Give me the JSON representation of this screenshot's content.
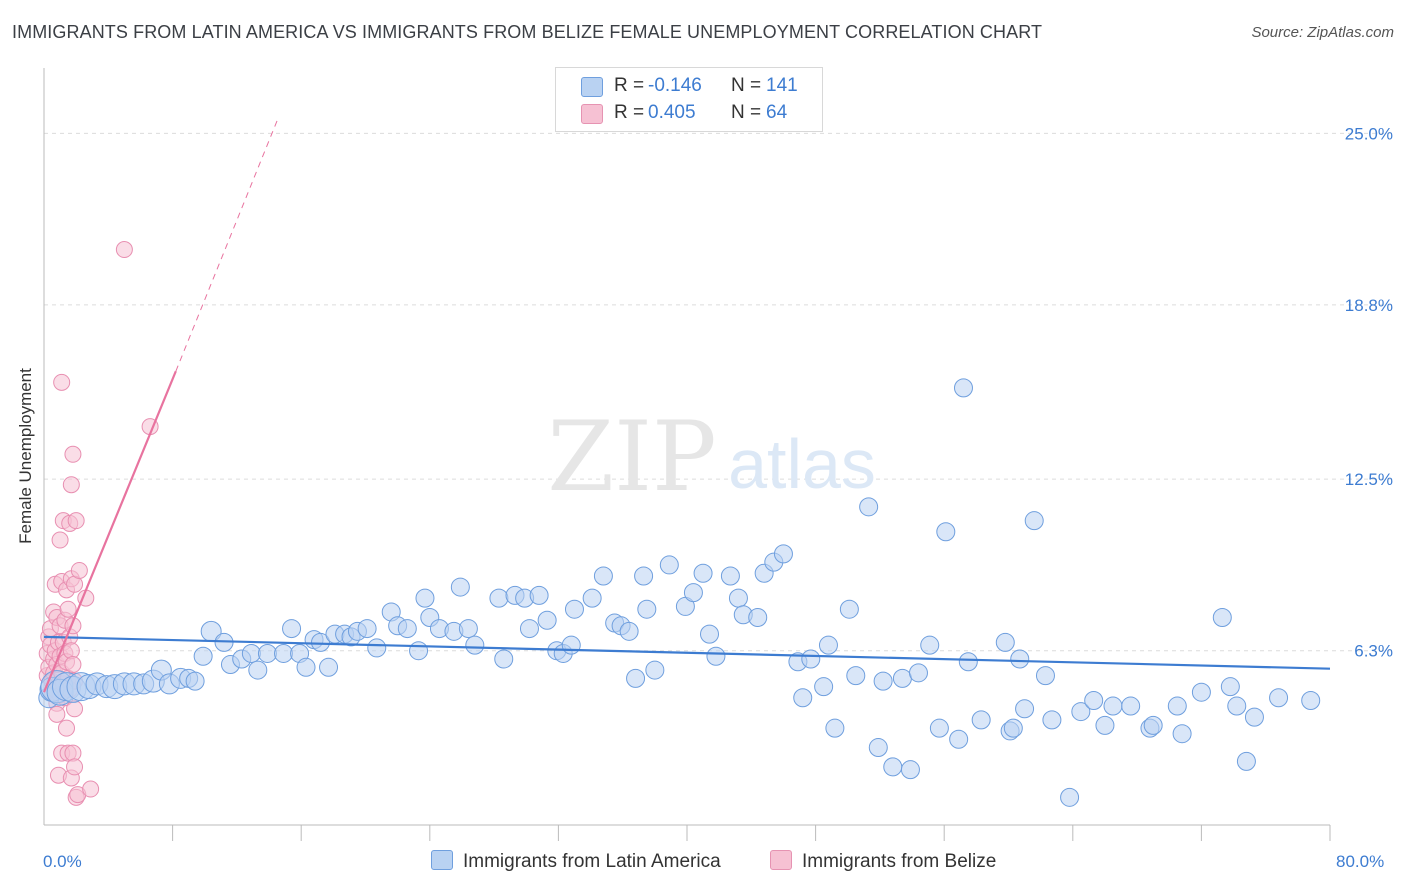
{
  "title": "IMMIGRANTS FROM LATIN AMERICA VS IMMIGRANTS FROM BELIZE FEMALE UNEMPLOYMENT CORRELATION CHART",
  "source": "Source: ZipAtlas.com",
  "watermark": {
    "zip": "ZIP",
    "atlas": "atlas"
  },
  "legend": {
    "rows": [
      {
        "r_label": "R =",
        "r_value": "-0.146",
        "n_label": "N =",
        "n_value": "141"
      },
      {
        "r_label": "R =",
        "r_value": "0.405",
        "n_label": "N =",
        "n_value": "64"
      }
    ]
  },
  "x_axis": {
    "min_label": "0.0%",
    "max_label": "80.0%"
  },
  "colors": {
    "blue": "#3d7cd1",
    "blue_fill": "#b9d2f2",
    "pink": "#e8739f",
    "pink_fill": "#f6c1d3",
    "grid": "#dcdcdc"
  },
  "chart_data": {
    "type": "scatter",
    "title": "IMMIGRANTS FROM LATIN AMERICA VS IMMIGRANTS FROM BELIZE FEMALE UNEMPLOYMENT CORRELATION CHART",
    "xlabel": "",
    "ylabel": "Female Unemployment",
    "xlim": [
      0,
      80
    ],
    "ylim": [
      0,
      27
    ],
    "y_ticks": [
      6.3,
      12.5,
      18.8,
      25.0
    ],
    "y_tick_labels": [
      "6.3%",
      "12.5%",
      "18.8%",
      "25.0%"
    ],
    "x_tick_values": [
      8,
      16,
      24,
      32,
      40,
      48,
      56,
      64,
      72,
      80
    ],
    "series": [
      {
        "name": "Immigrants from Latin America",
        "color": "blue",
        "r": -0.146,
        "n": 141,
        "trend": {
          "x0": 0,
          "y0": 6.8,
          "x1": 80,
          "y1": 5.65
        },
        "points": [
          {
            "x": 0.3,
            "y": 4.6,
            "s": 10
          },
          {
            "x": 0.5,
            "y": 4.9,
            "s": 12
          },
          {
            "x": 0.8,
            "y": 5.0,
            "s": 16
          },
          {
            "x": 1.0,
            "y": 4.8,
            "s": 13
          },
          {
            "x": 1.4,
            "y": 5.0,
            "s": 14
          },
          {
            "x": 1.8,
            "y": 4.9,
            "s": 13
          },
          {
            "x": 2.3,
            "y": 5.0,
            "s": 14
          },
          {
            "x": 2.8,
            "y": 5.0,
            "s": 12
          },
          {
            "x": 3.3,
            "y": 5.1,
            "s": 11
          },
          {
            "x": 3.9,
            "y": 5.0,
            "s": 11
          },
          {
            "x": 4.4,
            "y": 5.0,
            "s": 12
          },
          {
            "x": 5.0,
            "y": 5.1,
            "s": 11
          },
          {
            "x": 5.6,
            "y": 5.1,
            "s": 11
          },
          {
            "x": 6.2,
            "y": 5.1,
            "s": 10
          },
          {
            "x": 6.8,
            "y": 5.2,
            "s": 11
          },
          {
            "x": 7.3,
            "y": 5.6,
            "s": 10
          },
          {
            "x": 7.8,
            "y": 5.1,
            "s": 10
          },
          {
            "x": 8.5,
            "y": 5.3,
            "s": 10
          },
          {
            "x": 9.0,
            "y": 5.3,
            "s": 9
          },
          {
            "x": 9.4,
            "y": 5.2,
            "s": 9
          },
          {
            "x": 9.9,
            "y": 6.1,
            "s": 9
          },
          {
            "x": 10.4,
            "y": 7.0,
            "s": 10
          },
          {
            "x": 11.2,
            "y": 6.6,
            "s": 9
          },
          {
            "x": 11.6,
            "y": 5.8,
            "s": 9
          },
          {
            "x": 12.3,
            "y": 6.0,
            "s": 9
          },
          {
            "x": 12.9,
            "y": 6.2,
            "s": 9
          },
          {
            "x": 13.3,
            "y": 5.6,
            "s": 9
          },
          {
            "x": 13.9,
            "y": 6.2,
            "s": 9
          },
          {
            "x": 14.9,
            "y": 6.2,
            "s": 9
          },
          {
            "x": 15.4,
            "y": 7.1,
            "s": 9
          },
          {
            "x": 15.9,
            "y": 6.2,
            "s": 9
          },
          {
            "x": 16.3,
            "y": 5.7,
            "s": 9
          },
          {
            "x": 16.8,
            "y": 6.7,
            "s": 9
          },
          {
            "x": 17.2,
            "y": 6.6,
            "s": 9
          },
          {
            "x": 17.7,
            "y": 5.7,
            "s": 9
          },
          {
            "x": 18.1,
            "y": 6.9,
            "s": 9
          },
          {
            "x": 18.7,
            "y": 6.9,
            "s": 9
          },
          {
            "x": 19.1,
            "y": 6.8,
            "s": 9
          },
          {
            "x": 19.5,
            "y": 7.0,
            "s": 9
          },
          {
            "x": 20.1,
            "y": 7.1,
            "s": 9
          },
          {
            "x": 20.7,
            "y": 6.4,
            "s": 9
          },
          {
            "x": 21.6,
            "y": 7.7,
            "s": 9
          },
          {
            "x": 22.0,
            "y": 7.2,
            "s": 9
          },
          {
            "x": 22.6,
            "y": 7.1,
            "s": 9
          },
          {
            "x": 23.3,
            "y": 6.3,
            "s": 9
          },
          {
            "x": 23.7,
            "y": 8.2,
            "s": 9
          },
          {
            "x": 24.0,
            "y": 7.5,
            "s": 9
          },
          {
            "x": 24.6,
            "y": 7.1,
            "s": 9
          },
          {
            "x": 25.5,
            "y": 7.0,
            "s": 9
          },
          {
            "x": 25.9,
            "y": 8.6,
            "s": 9
          },
          {
            "x": 26.4,
            "y": 7.1,
            "s": 9
          },
          {
            "x": 26.8,
            "y": 6.5,
            "s": 9
          },
          {
            "x": 28.3,
            "y": 8.2,
            "s": 9
          },
          {
            "x": 28.6,
            "y": 6.0,
            "s": 9
          },
          {
            "x": 29.3,
            "y": 8.3,
            "s": 9
          },
          {
            "x": 29.9,
            "y": 8.2,
            "s": 9
          },
          {
            "x": 30.2,
            "y": 7.1,
            "s": 9
          },
          {
            "x": 30.8,
            "y": 8.3,
            "s": 9
          },
          {
            "x": 31.3,
            "y": 7.4,
            "s": 9
          },
          {
            "x": 31.9,
            "y": 6.3,
            "s": 9
          },
          {
            "x": 32.3,
            "y": 6.2,
            "s": 9
          },
          {
            "x": 32.8,
            "y": 6.5,
            "s": 9
          },
          {
            "x": 33.0,
            "y": 7.8,
            "s": 9
          },
          {
            "x": 34.1,
            "y": 8.2,
            "s": 9
          },
          {
            "x": 34.8,
            "y": 9.0,
            "s": 9
          },
          {
            "x": 35.5,
            "y": 7.3,
            "s": 9
          },
          {
            "x": 35.9,
            "y": 7.2,
            "s": 9
          },
          {
            "x": 36.4,
            "y": 7.0,
            "s": 9
          },
          {
            "x": 36.8,
            "y": 5.3,
            "s": 9
          },
          {
            "x": 37.3,
            "y": 9.0,
            "s": 9
          },
          {
            "x": 37.5,
            "y": 7.8,
            "s": 9
          },
          {
            "x": 38.0,
            "y": 5.6,
            "s": 9
          },
          {
            "x": 38.9,
            "y": 9.4,
            "s": 9
          },
          {
            "x": 39.9,
            "y": 7.9,
            "s": 9
          },
          {
            "x": 40.4,
            "y": 8.4,
            "s": 9
          },
          {
            "x": 41.0,
            "y": 9.1,
            "s": 9
          },
          {
            "x": 41.4,
            "y": 6.9,
            "s": 9
          },
          {
            "x": 41.8,
            "y": 6.1,
            "s": 9
          },
          {
            "x": 42.7,
            "y": 9.0,
            "s": 9
          },
          {
            "x": 43.2,
            "y": 8.2,
            "s": 9
          },
          {
            "x": 43.5,
            "y": 7.6,
            "s": 9
          },
          {
            "x": 44.4,
            "y": 7.5,
            "s": 9
          },
          {
            "x": 44.8,
            "y": 9.1,
            "s": 9
          },
          {
            "x": 45.4,
            "y": 9.5,
            "s": 9
          },
          {
            "x": 46.0,
            "y": 9.8,
            "s": 9
          },
          {
            "x": 46.9,
            "y": 5.9,
            "s": 9
          },
          {
            "x": 47.2,
            "y": 4.6,
            "s": 9
          },
          {
            "x": 47.7,
            "y": 6.0,
            "s": 9
          },
          {
            "x": 48.5,
            "y": 5.0,
            "s": 9
          },
          {
            "x": 48.8,
            "y": 6.5,
            "s": 9
          },
          {
            "x": 49.2,
            "y": 3.5,
            "s": 9
          },
          {
            "x": 50.1,
            "y": 7.8,
            "s": 9
          },
          {
            "x": 50.5,
            "y": 5.4,
            "s": 9
          },
          {
            "x": 51.3,
            "y": 11.5,
            "s": 9
          },
          {
            "x": 51.9,
            "y": 2.8,
            "s": 9
          },
          {
            "x": 52.2,
            "y": 5.2,
            "s": 9
          },
          {
            "x": 52.8,
            "y": 2.1,
            "s": 9
          },
          {
            "x": 53.4,
            "y": 5.3,
            "s": 9
          },
          {
            "x": 53.9,
            "y": 2.0,
            "s": 9
          },
          {
            "x": 54.4,
            "y": 5.5,
            "s": 9
          },
          {
            "x": 55.1,
            "y": 6.5,
            "s": 9
          },
          {
            "x": 55.7,
            "y": 3.5,
            "s": 9
          },
          {
            "x": 56.1,
            "y": 10.6,
            "s": 9
          },
          {
            "x": 56.9,
            "y": 3.1,
            "s": 9
          },
          {
            "x": 57.2,
            "y": 15.8,
            "s": 9
          },
          {
            "x": 57.5,
            "y": 5.9,
            "s": 9
          },
          {
            "x": 58.3,
            "y": 3.8,
            "s": 9
          },
          {
            "x": 59.8,
            "y": 6.6,
            "s": 9
          },
          {
            "x": 60.1,
            "y": 3.4,
            "s": 9
          },
          {
            "x": 60.3,
            "y": 3.5,
            "s": 9
          },
          {
            "x": 60.7,
            "y": 6.0,
            "s": 9
          },
          {
            "x": 61.0,
            "y": 4.2,
            "s": 9
          },
          {
            "x": 61.6,
            "y": 11.0,
            "s": 9
          },
          {
            "x": 62.3,
            "y": 5.4,
            "s": 9
          },
          {
            "x": 62.7,
            "y": 3.8,
            "s": 9
          },
          {
            "x": 63.8,
            "y": 1.0,
            "s": 9
          },
          {
            "x": 64.5,
            "y": 4.1,
            "s": 9
          },
          {
            "x": 65.3,
            "y": 4.5,
            "s": 9
          },
          {
            "x": 66.0,
            "y": 3.6,
            "s": 9
          },
          {
            "x": 66.5,
            "y": 4.3,
            "s": 9
          },
          {
            "x": 67.6,
            "y": 4.3,
            "s": 9
          },
          {
            "x": 68.8,
            "y": 3.5,
            "s": 9
          },
          {
            "x": 69.0,
            "y": 3.6,
            "s": 9
          },
          {
            "x": 70.5,
            "y": 4.3,
            "s": 9
          },
          {
            "x": 70.8,
            "y": 3.3,
            "s": 9
          },
          {
            "x": 72.0,
            "y": 4.8,
            "s": 9
          },
          {
            "x": 73.3,
            "y": 7.5,
            "s": 9
          },
          {
            "x": 73.8,
            "y": 5.0,
            "s": 9
          },
          {
            "x": 74.2,
            "y": 4.3,
            "s": 9
          },
          {
            "x": 74.8,
            "y": 2.3,
            "s": 9
          },
          {
            "x": 75.3,
            "y": 3.9,
            "s": 9
          },
          {
            "x": 76.8,
            "y": 4.6,
            "s": 9
          },
          {
            "x": 78.8,
            "y": 4.5,
            "s": 9
          }
        ]
      },
      {
        "name": "Immigrants from Belize",
        "color": "pink",
        "r": 0.405,
        "n": 64,
        "trend": {
          "x0": 0,
          "y0": 4.8,
          "x1": 8.2,
          "y1": 16.4,
          "dash_x1": 14.6,
          "dash_y1": 25.6
        },
        "points": [
          {
            "x": 0.2,
            "y": 6.2,
            "s": 8
          },
          {
            "x": 0.2,
            "y": 5.4,
            "s": 8
          },
          {
            "x": 0.3,
            "y": 6.8,
            "s": 8
          },
          {
            "x": 0.3,
            "y": 5.7,
            "s": 8
          },
          {
            "x": 0.4,
            "y": 7.1,
            "s": 8
          },
          {
            "x": 0.4,
            "y": 6.5,
            "s": 8
          },
          {
            "x": 0.5,
            "y": 5.2,
            "s": 8
          },
          {
            "x": 0.5,
            "y": 4.8,
            "s": 8
          },
          {
            "x": 0.6,
            "y": 7.7,
            "s": 8
          },
          {
            "x": 0.6,
            "y": 6.0,
            "s": 8
          },
          {
            "x": 0.6,
            "y": 5.5,
            "s": 8
          },
          {
            "x": 0.7,
            "y": 8.7,
            "s": 8
          },
          {
            "x": 0.7,
            "y": 6.3,
            "s": 8
          },
          {
            "x": 0.7,
            "y": 4.9,
            "s": 8
          },
          {
            "x": 0.8,
            "y": 7.5,
            "s": 8
          },
          {
            "x": 0.8,
            "y": 5.8,
            "s": 8
          },
          {
            "x": 0.8,
            "y": 4.4,
            "s": 8
          },
          {
            "x": 0.8,
            "y": 4.0,
            "s": 8
          },
          {
            "x": 0.9,
            "y": 6.6,
            "s": 8
          },
          {
            "x": 0.9,
            "y": 5.1,
            "s": 8
          },
          {
            "x": 0.9,
            "y": 1.8,
            "s": 8
          },
          {
            "x": 1.0,
            "y": 10.3,
            "s": 8
          },
          {
            "x": 1.0,
            "y": 7.2,
            "s": 8
          },
          {
            "x": 1.0,
            "y": 6.1,
            "s": 8
          },
          {
            "x": 1.0,
            "y": 4.7,
            "s": 8
          },
          {
            "x": 1.1,
            "y": 16.0,
            "s": 8
          },
          {
            "x": 1.1,
            "y": 8.8,
            "s": 8
          },
          {
            "x": 1.1,
            "y": 5.5,
            "s": 8
          },
          {
            "x": 1.1,
            "y": 2.6,
            "s": 8
          },
          {
            "x": 1.2,
            "y": 11.0,
            "s": 8
          },
          {
            "x": 1.2,
            "y": 6.6,
            "s": 8
          },
          {
            "x": 1.2,
            "y": 5.1,
            "s": 8
          },
          {
            "x": 1.3,
            "y": 7.4,
            "s": 8
          },
          {
            "x": 1.3,
            "y": 6.2,
            "s": 8
          },
          {
            "x": 1.3,
            "y": 4.6,
            "s": 8
          },
          {
            "x": 1.4,
            "y": 8.5,
            "s": 8
          },
          {
            "x": 1.4,
            "y": 5.9,
            "s": 8
          },
          {
            "x": 1.4,
            "y": 3.5,
            "s": 8
          },
          {
            "x": 1.5,
            "y": 7.8,
            "s": 8
          },
          {
            "x": 1.5,
            "y": 5.3,
            "s": 8
          },
          {
            "x": 1.5,
            "y": 2.6,
            "s": 8
          },
          {
            "x": 1.6,
            "y": 10.9,
            "s": 8
          },
          {
            "x": 1.6,
            "y": 6.8,
            "s": 8
          },
          {
            "x": 1.6,
            "y": 4.9,
            "s": 8
          },
          {
            "x": 1.7,
            "y": 12.3,
            "s": 8
          },
          {
            "x": 1.7,
            "y": 8.9,
            "s": 8
          },
          {
            "x": 1.7,
            "y": 6.3,
            "s": 8
          },
          {
            "x": 1.7,
            "y": 1.7,
            "s": 8
          },
          {
            "x": 1.8,
            "y": 13.4,
            "s": 8
          },
          {
            "x": 1.8,
            "y": 7.2,
            "s": 8
          },
          {
            "x": 1.8,
            "y": 5.8,
            "s": 8
          },
          {
            "x": 1.8,
            "y": 2.6,
            "s": 8
          },
          {
            "x": 1.9,
            "y": 8.7,
            "s": 8
          },
          {
            "x": 1.9,
            "y": 5.2,
            "s": 8
          },
          {
            "x": 1.9,
            "y": 4.2,
            "s": 8
          },
          {
            "x": 1.9,
            "y": 2.1,
            "s": 8
          },
          {
            "x": 2.0,
            "y": 11.0,
            "s": 8
          },
          {
            "x": 2.0,
            "y": 1.0,
            "s": 8
          },
          {
            "x": 2.1,
            "y": 1.1,
            "s": 8
          },
          {
            "x": 2.2,
            "y": 9.2,
            "s": 8
          },
          {
            "x": 2.6,
            "y": 8.2,
            "s": 8
          },
          {
            "x": 2.9,
            "y": 1.3,
            "s": 8
          },
          {
            "x": 5.0,
            "y": 20.8,
            "s": 8
          },
          {
            "x": 6.6,
            "y": 14.4,
            "s": 8
          }
        ]
      }
    ]
  }
}
